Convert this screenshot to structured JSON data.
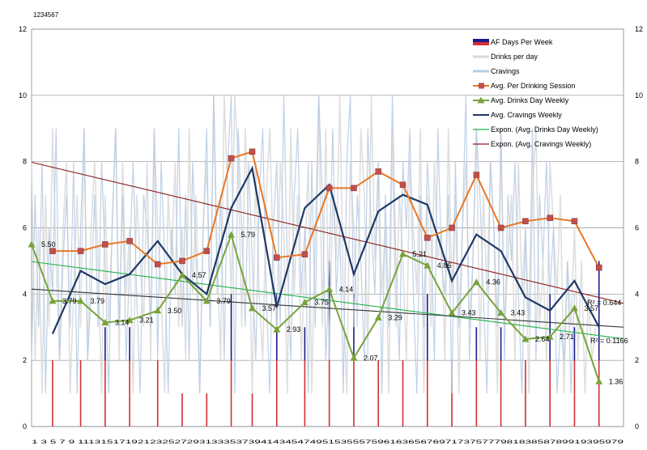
{
  "chart_data": {
    "type": "line",
    "corner_label": "1234567",
    "ylim": [
      0,
      12
    ],
    "yticks": [
      0,
      2,
      4,
      6,
      8,
      10,
      12
    ],
    "grid": true,
    "legend_position": "top-right",
    "x_tick_text": "1 3 5 7 9 11131517192123252729313335373941434547495153555759616365676971737577798183858789919395979",
    "series": [
      {
        "name": "AF Days Per Week",
        "kind": "bars",
        "color": "#1a1a8c",
        "bars": [
          {
            "x": 7,
            "value": 2
          },
          {
            "x": 15,
            "value": 2
          },
          {
            "x": 22,
            "value": 3
          },
          {
            "x": 29,
            "value": 3
          },
          {
            "x": 37,
            "value": 2
          },
          {
            "x": 44,
            "value": 1
          },
          {
            "x": 51,
            "value": 1
          },
          {
            "x": 58,
            "value": 4
          },
          {
            "x": 64,
            "value": 1
          },
          {
            "x": 71,
            "value": 4
          },
          {
            "x": 79,
            "value": 3
          },
          {
            "x": 86,
            "value": 5
          },
          {
            "x": 93,
            "value": 4
          },
          {
            "x": 100,
            "value": 2
          },
          {
            "x": 107,
            "value": 2
          },
          {
            "x": 114,
            "value": 4
          },
          {
            "x": 121,
            "value": 2
          },
          {
            "x": 128,
            "value": 3
          },
          {
            "x": 135,
            "value": 3
          },
          {
            "x": 142,
            "value": 2
          },
          {
            "x": 149,
            "value": 4
          },
          {
            "x": 156,
            "value": 3
          },
          {
            "x": 163,
            "value": 5
          }
        ]
      },
      {
        "name": "Drinks per day",
        "kind": "line",
        "color": "#d9d9d9",
        "x_start": 1,
        "values": [
          8,
          2,
          6,
          1,
          7,
          3,
          9,
          5,
          2,
          6,
          8,
          1,
          4,
          7,
          3,
          9,
          2,
          6,
          8,
          5,
          1,
          7,
          3,
          6,
          9,
          2,
          8,
          4,
          6,
          1,
          7,
          5,
          3,
          8,
          2,
          9,
          6,
          4,
          1,
          7,
          5,
          8,
          3,
          6,
          2,
          9,
          4,
          7,
          1,
          6,
          8,
          3,
          10,
          5,
          2,
          10,
          7,
          4,
          10,
          8,
          3,
          9,
          6,
          1,
          8,
          4,
          2,
          7,
          9,
          5,
          3,
          8,
          6,
          1,
          9,
          4,
          7,
          2,
          5,
          8,
          1,
          6,
          10,
          3,
          9,
          2,
          7,
          5,
          10,
          4,
          1,
          8,
          6,
          3,
          9,
          7,
          2,
          10,
          5,
          8,
          4,
          6,
          1,
          9,
          3,
          7,
          5,
          2,
          8,
          6,
          4,
          9,
          1,
          7,
          3,
          8,
          5,
          6,
          2,
          9,
          4,
          7,
          1,
          6,
          8,
          3,
          5,
          9,
          2,
          7,
          4,
          8,
          6,
          1,
          9,
          3,
          5,
          7,
          2,
          8,
          4,
          6,
          1,
          7,
          9,
          3,
          5,
          2,
          8,
          6,
          4,
          7,
          1,
          5,
          3,
          6,
          2,
          5,
          1,
          4,
          2,
          3
        ]
      },
      {
        "name": "Cravings",
        "kind": "line",
        "color": "#b8cce4",
        "x_start": 1,
        "values": [
          2,
          7,
          3,
          8,
          1,
          6,
          4,
          9,
          2,
          5,
          7,
          3,
          8,
          1,
          6,
          9,
          2,
          4,
          7,
          3,
          8,
          5,
          1,
          6,
          9,
          3,
          7,
          2,
          5,
          8,
          4,
          1,
          7,
          6,
          3,
          9,
          2,
          8,
          5,
          1,
          6,
          4,
          9,
          3,
          7,
          2,
          8,
          5,
          1,
          6,
          9,
          3,
          10,
          4,
          7,
          2,
          8,
          10,
          1,
          9,
          6,
          3,
          8,
          5,
          2,
          7,
          9,
          4,
          1,
          6,
          8,
          3,
          10,
          5,
          2,
          7,
          9,
          4,
          6,
          1,
          8,
          3,
          10,
          7,
          2,
          5,
          9,
          4,
          6,
          1,
          8,
          10,
          3,
          7,
          5,
          2,
          9,
          6,
          4,
          8,
          1,
          7,
          3,
          10,
          5,
          2,
          8,
          6,
          9,
          4,
          1,
          7,
          3,
          8,
          6,
          2,
          9,
          5,
          4,
          7,
          1,
          8,
          3,
          6,
          10,
          2,
          5,
          9,
          7,
          4,
          1,
          8,
          6,
          3,
          9,
          2,
          7,
          5,
          8,
          4,
          1,
          6,
          3,
          9,
          2,
          7,
          5,
          8,
          4,
          6,
          1,
          3,
          2,
          5,
          1,
          4
        ]
      },
      {
        "name": "Avg. Per Drinking Session",
        "kind": "markers-square",
        "color": "#e87722",
        "marker_color": "#c0504d",
        "x": [
          7,
          15,
          22,
          29,
          37,
          44,
          51,
          58,
          64,
          71,
          79,
          86,
          93,
          100,
          107,
          114,
          121,
          128,
          135,
          142,
          149,
          156,
          163
        ],
        "values": [
          5.3,
          5.3,
          5.5,
          5.6,
          4.9,
          5.0,
          5.3,
          8.1,
          8.3,
          5.1,
          5.2,
          7.2,
          7.2,
          7.7,
          7.3,
          5.7,
          6.0,
          7.6,
          6.0,
          6.2,
          6.3,
          6.2,
          4.8
        ]
      },
      {
        "name": "Avg. Drinks Day Weekly",
        "kind": "markers-triangle",
        "color": "#77a33a",
        "x": [
          1,
          7,
          15,
          22,
          29,
          37,
          44,
          51,
          58,
          64,
          71,
          79,
          86,
          93,
          100,
          107,
          114,
          121,
          128,
          135,
          142,
          149,
          156,
          163
        ],
        "values": [
          5.5,
          3.79,
          3.79,
          3.14,
          3.21,
          3.5,
          4.57,
          3.79,
          5.79,
          3.57,
          2.93,
          3.75,
          4.14,
          2.07,
          3.29,
          5.21,
          4.86,
          3.43,
          4.36,
          3.43,
          2.64,
          2.71,
          3.57,
          1.36
        ],
        "labels": [
          "5.50",
          "3.79",
          "3.79",
          "3.14",
          "3.21",
          "3.50",
          "4.57",
          "3.79",
          "5.79",
          "3.57",
          "2.93",
          "3.75",
          "4.14",
          "2.07",
          "3.29",
          "5.21",
          "4.86",
          "3.43",
          "4.36",
          "3.43",
          "2.64",
          "2.71",
          "3.57",
          "1.36"
        ]
      },
      {
        "name": "Avg. Cravings Weekly",
        "kind": "line-bold",
        "color": "#1f3864",
        "x": [
          7,
          15,
          22,
          29,
          37,
          44,
          51,
          58,
          64,
          71,
          79,
          86,
          93,
          100,
          107,
          114,
          121,
          128,
          135,
          142,
          149,
          156,
          163
        ],
        "values": [
          2.8,
          4.7,
          4.3,
          4.6,
          5.6,
          4.6,
          4.0,
          6.6,
          7.8,
          3.6,
          6.6,
          7.3,
          4.6,
          6.5,
          7.0,
          6.7,
          4.4,
          5.8,
          5.3,
          3.9,
          3.5,
          4.4,
          3.0
        ]
      },
      {
        "name": "Expon. (Avg. Drinks Day Weekly)",
        "kind": "trend",
        "color": "#21b14a",
        "values": [
          4.98,
          2.65
        ]
      },
      {
        "name": "Expon. (Avg. Cravings Weekly)",
        "kind": "trend",
        "color": "#8b1a1a",
        "values": [
          7.98,
          3.72
        ]
      },
      {
        "name": "",
        "kind": "trend-unnamed",
        "color": "#333333",
        "values": [
          4.15,
          3.0
        ]
      }
    ],
    "x_range": [
      1,
      170
    ],
    "annotations": [
      "R² = 0.644",
      "R² = 0.1166"
    ]
  }
}
